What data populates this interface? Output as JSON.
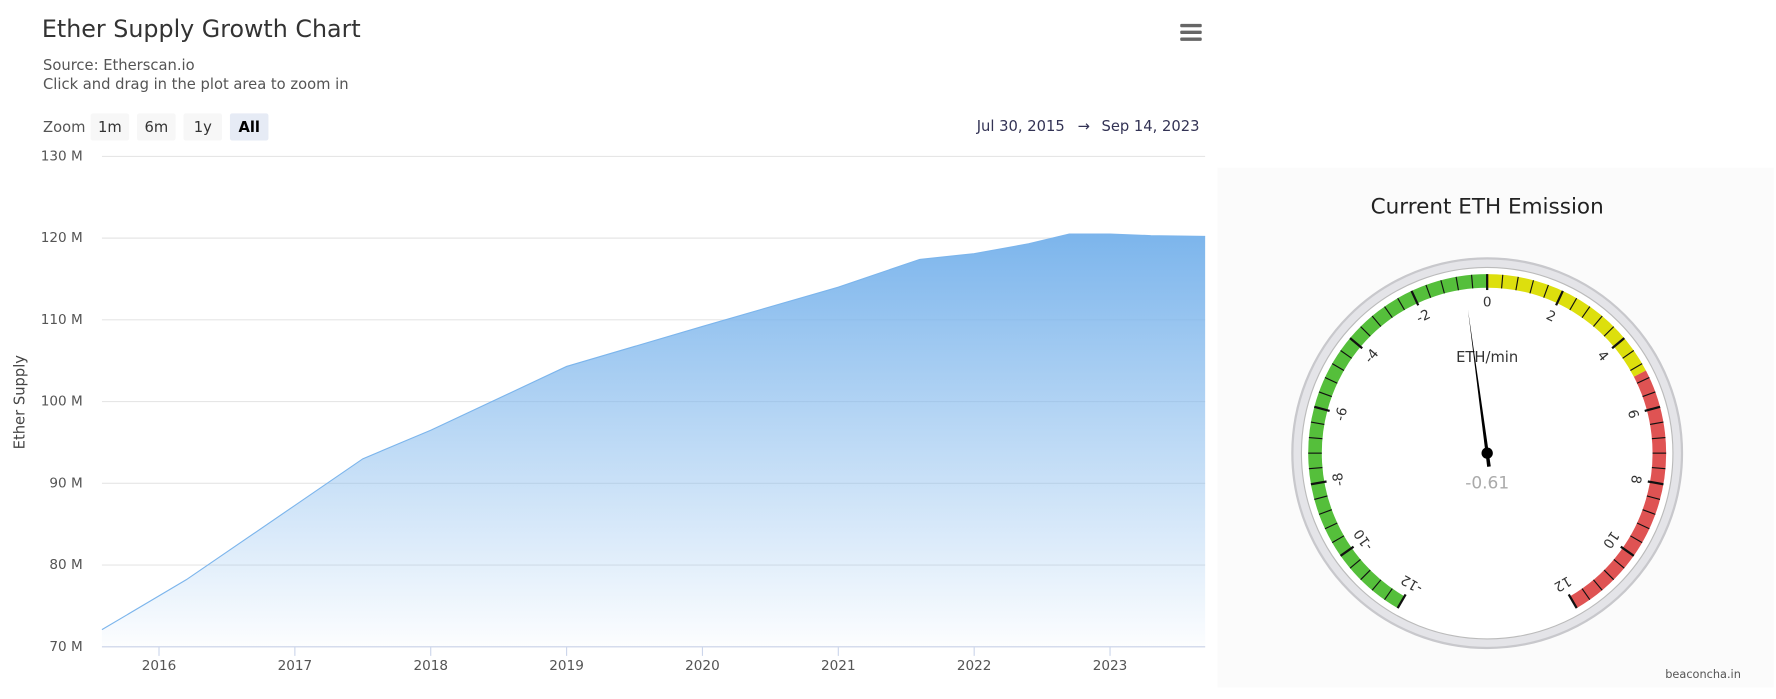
{
  "chart_data": [
    {
      "type": "area",
      "title": "Ether Supply Growth Chart",
      "subtitle": [
        "Source: Etherscan.io",
        "Click and drag in the plot area to zoom in"
      ],
      "range_selector": {
        "label": "Zoom",
        "buttons": [
          "1m",
          "6m",
          "1y",
          "All"
        ],
        "selected": 3,
        "from": "Jul 30, 2015",
        "separator": "→",
        "to": "Sep 14, 2023"
      },
      "y_label": "Ether Supply",
      "x": [
        2015.58,
        2016.2,
        2017.0,
        2017.5,
        2017.8,
        2018.0,
        2019.0,
        2020.0,
        2021.0,
        2021.6,
        2022.0,
        2022.4,
        2022.7,
        2023.0,
        2023.3,
        2023.7
      ],
      "values": [
        72.1,
        78.2,
        87.3,
        93.0,
        95.1,
        96.5,
        104.3,
        109.2,
        114.0,
        117.4,
        118.1,
        119.3,
        120.5,
        120.5,
        120.3,
        120.2
      ],
      "color": "#7cb5ec",
      "xlim": [
        2015.58,
        2023.7
      ],
      "xticks": [
        2016,
        2017,
        2018,
        2019,
        2020,
        2021,
        2022,
        2023
      ],
      "ylim": [
        70,
        130
      ],
      "yticks": [
        {
          "value": 70,
          "label": "70 M"
        },
        {
          "value": 80,
          "label": "80 M"
        },
        {
          "value": 90,
          "label": "90 M"
        },
        {
          "value": 100,
          "label": "100 M"
        },
        {
          "value": 110,
          "label": "110 M"
        },
        {
          "value": 120,
          "label": "120 M"
        },
        {
          "value": 130,
          "label": "130 M"
        }
      ],
      "grid": true
    },
    {
      "type": "gauge",
      "title": "Current ETH Emission",
      "unit": "ETH/min",
      "value": -0.61,
      "min": -12,
      "max": 12,
      "ticks": [
        -12,
        -10,
        -8,
        -6,
        -4,
        -2,
        0,
        2,
        4,
        6,
        8,
        10,
        12
      ],
      "bands": [
        {
          "from": -12,
          "to": 0,
          "color": "#55bf3b"
        },
        {
          "from": 0,
          "to": 5,
          "color": "#dddf0d"
        },
        {
          "from": 5,
          "to": 12,
          "color": "#df5353"
        }
      ],
      "credits": "beaconcha.in"
    }
  ]
}
